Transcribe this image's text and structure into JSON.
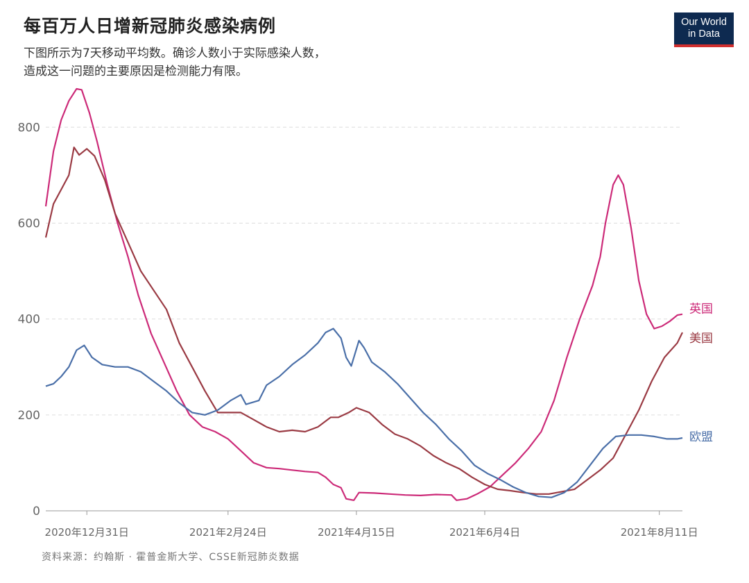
{
  "header": {
    "title": "每百万人日增新冠肺炎感染病例",
    "subtitle_line1": "下图所示为7天移动平均数。确诊人数小于实际感染人数，",
    "subtitle_line2": "造成这一问题的主要原因是检测能力有限。",
    "logo_line1": "Our World",
    "logo_line2": "in Data"
  },
  "footer": {
    "source": "资料来源：约翰斯 · 霍普金斯大学、CSSE新冠肺炎数据"
  },
  "chart_data": {
    "type": "line",
    "title": "每百万人日增新冠肺炎感染病例",
    "subtitle": "下图所示为7天移动平均数。确诊人数小于实际感染人数，造成这一问题的主要原因是检测能力有限。",
    "xlabel": "",
    "ylabel": "",
    "xlim": [
      "2020-12-15",
      "2021-08-20"
    ],
    "ylim": [
      0,
      880
    ],
    "yticks": [
      0,
      200,
      400,
      600,
      800
    ],
    "xticks": [
      {
        "date": "2020-12-31",
        "label": "2020年12月31日"
      },
      {
        "date": "2021-02-24",
        "label": "2021年2月24日"
      },
      {
        "date": "2021-04-15",
        "label": "2021年4月15日"
      },
      {
        "date": "2021-06-04",
        "label": "2021年6月4日"
      },
      {
        "date": "2021-08-11",
        "label": "2021年8月11日"
      }
    ],
    "grid": true,
    "legend": "inline-right",
    "series": [
      {
        "name": "英国",
        "color": "#cc2a78",
        "points": [
          [
            "2020-12-15",
            635
          ],
          [
            "2020-12-18",
            750
          ],
          [
            "2020-12-21",
            815
          ],
          [
            "2020-12-24",
            855
          ],
          [
            "2020-12-27",
            880
          ],
          [
            "2020-12-29",
            878
          ],
          [
            "2021-01-01",
            830
          ],
          [
            "2021-01-04",
            770
          ],
          [
            "2021-01-08",
            680
          ],
          [
            "2021-01-12",
            600
          ],
          [
            "2021-01-16",
            530
          ],
          [
            "2021-01-20",
            450
          ],
          [
            "2021-01-25",
            370
          ],
          [
            "2021-01-30",
            310
          ],
          [
            "2021-02-04",
            250
          ],
          [
            "2021-02-09",
            200
          ],
          [
            "2021-02-14",
            175
          ],
          [
            "2021-02-19",
            165
          ],
          [
            "2021-02-24",
            150
          ],
          [
            "2021-03-01",
            125
          ],
          [
            "2021-03-06",
            100
          ],
          [
            "2021-03-11",
            90
          ],
          [
            "2021-03-16",
            88
          ],
          [
            "2021-03-21",
            85
          ],
          [
            "2021-03-26",
            82
          ],
          [
            "2021-03-31",
            80
          ],
          [
            "2021-04-03",
            70
          ],
          [
            "2021-04-06",
            55
          ],
          [
            "2021-04-09",
            48
          ],
          [
            "2021-04-11",
            25
          ],
          [
            "2021-04-14",
            22
          ],
          [
            "2021-04-16",
            38
          ],
          [
            "2021-04-22",
            37
          ],
          [
            "2021-04-28",
            35
          ],
          [
            "2021-05-04",
            33
          ],
          [
            "2021-05-10",
            32
          ],
          [
            "2021-05-16",
            34
          ],
          [
            "2021-05-22",
            33
          ],
          [
            "2021-05-24",
            22
          ],
          [
            "2021-05-28",
            25
          ],
          [
            "2021-06-01",
            35
          ],
          [
            "2021-06-06",
            50
          ],
          [
            "2021-06-11",
            75
          ],
          [
            "2021-06-16",
            100
          ],
          [
            "2021-06-21",
            130
          ],
          [
            "2021-06-26",
            165
          ],
          [
            "2021-07-01",
            230
          ],
          [
            "2021-07-06",
            320
          ],
          [
            "2021-07-11",
            400
          ],
          [
            "2021-07-16",
            470
          ],
          [
            "2021-07-19",
            530
          ],
          [
            "2021-07-21",
            600
          ],
          [
            "2021-07-24",
            680
          ],
          [
            "2021-07-26",
            700
          ],
          [
            "2021-07-28",
            680
          ],
          [
            "2021-07-31",
            590
          ],
          [
            "2021-08-03",
            480
          ],
          [
            "2021-08-06",
            410
          ],
          [
            "2021-08-09",
            380
          ],
          [
            "2021-08-12",
            385
          ],
          [
            "2021-08-15",
            395
          ],
          [
            "2021-08-18",
            408
          ],
          [
            "2021-08-20",
            410
          ]
        ]
      },
      {
        "name": "美国",
        "color": "#9a3a43",
        "points": [
          [
            "2020-12-15",
            570
          ],
          [
            "2020-12-18",
            640
          ],
          [
            "2020-12-21",
            670
          ],
          [
            "2020-12-24",
            700
          ],
          [
            "2020-12-26",
            758
          ],
          [
            "2020-12-28",
            742
          ],
          [
            "2020-12-31",
            755
          ],
          [
            "2021-01-03",
            740
          ],
          [
            "2021-01-07",
            690
          ],
          [
            "2021-01-11",
            620
          ],
          [
            "2021-01-16",
            560
          ],
          [
            "2021-01-21",
            500
          ],
          [
            "2021-01-26",
            460
          ],
          [
            "2021-01-31",
            420
          ],
          [
            "2021-02-05",
            350
          ],
          [
            "2021-02-10",
            300
          ],
          [
            "2021-02-15",
            250
          ],
          [
            "2021-02-20",
            205
          ],
          [
            "2021-02-24",
            205
          ],
          [
            "2021-03-01",
            205
          ],
          [
            "2021-03-06",
            190
          ],
          [
            "2021-03-11",
            175
          ],
          [
            "2021-03-16",
            165
          ],
          [
            "2021-03-21",
            168
          ],
          [
            "2021-03-26",
            165
          ],
          [
            "2021-03-31",
            175
          ],
          [
            "2021-04-05",
            195
          ],
          [
            "2021-04-08",
            195
          ],
          [
            "2021-04-12",
            205
          ],
          [
            "2021-04-15",
            215
          ],
          [
            "2021-04-20",
            205
          ],
          [
            "2021-04-25",
            180
          ],
          [
            "2021-04-30",
            160
          ],
          [
            "2021-05-05",
            150
          ],
          [
            "2021-05-10",
            135
          ],
          [
            "2021-05-15",
            115
          ],
          [
            "2021-05-20",
            100
          ],
          [
            "2021-05-25",
            88
          ],
          [
            "2021-05-30",
            70
          ],
          [
            "2021-06-04",
            55
          ],
          [
            "2021-06-09",
            45
          ],
          [
            "2021-06-14",
            42
          ],
          [
            "2021-06-19",
            38
          ],
          [
            "2021-06-24",
            35
          ],
          [
            "2021-06-29",
            35
          ],
          [
            "2021-07-04",
            40
          ],
          [
            "2021-07-09",
            45
          ],
          [
            "2021-07-14",
            65
          ],
          [
            "2021-07-19",
            85
          ],
          [
            "2021-07-24",
            110
          ],
          [
            "2021-07-29",
            160
          ],
          [
            "2021-08-03",
            210
          ],
          [
            "2021-08-08",
            270
          ],
          [
            "2021-08-13",
            320
          ],
          [
            "2021-08-18",
            350
          ],
          [
            "2021-08-20",
            372
          ]
        ]
      },
      {
        "name": "欧盟",
        "color": "#4a6fa8",
        "points": [
          [
            "2020-12-15",
            260
          ],
          [
            "2020-12-18",
            265
          ],
          [
            "2020-12-21",
            280
          ],
          [
            "2020-12-24",
            300
          ],
          [
            "2020-12-27",
            335
          ],
          [
            "2020-12-30",
            345
          ],
          [
            "2021-01-02",
            320
          ],
          [
            "2021-01-06",
            305
          ],
          [
            "2021-01-11",
            300
          ],
          [
            "2021-01-16",
            300
          ],
          [
            "2021-01-21",
            290
          ],
          [
            "2021-01-26",
            270
          ],
          [
            "2021-01-31",
            250
          ],
          [
            "2021-02-05",
            225
          ],
          [
            "2021-02-10",
            205
          ],
          [
            "2021-02-15",
            200
          ],
          [
            "2021-02-20",
            210
          ],
          [
            "2021-02-25",
            230
          ],
          [
            "2021-03-01",
            242
          ],
          [
            "2021-03-03",
            222
          ],
          [
            "2021-03-08",
            230
          ],
          [
            "2021-03-11",
            262
          ],
          [
            "2021-03-16",
            280
          ],
          [
            "2021-03-21",
            305
          ],
          [
            "2021-03-26",
            325
          ],
          [
            "2021-03-31",
            350
          ],
          [
            "2021-04-03",
            372
          ],
          [
            "2021-04-06",
            380
          ],
          [
            "2021-04-09",
            360
          ],
          [
            "2021-04-11",
            320
          ],
          [
            "2021-04-13",
            302
          ],
          [
            "2021-04-16",
            355
          ],
          [
            "2021-04-18",
            340
          ],
          [
            "2021-04-21",
            310
          ],
          [
            "2021-04-26",
            290
          ],
          [
            "2021-05-01",
            265
          ],
          [
            "2021-05-06",
            235
          ],
          [
            "2021-05-11",
            205
          ],
          [
            "2021-05-16",
            180
          ],
          [
            "2021-05-21",
            150
          ],
          [
            "2021-05-26",
            125
          ],
          [
            "2021-05-31",
            95
          ],
          [
            "2021-06-05",
            78
          ],
          [
            "2021-06-10",
            65
          ],
          [
            "2021-06-15",
            50
          ],
          [
            "2021-06-20",
            38
          ],
          [
            "2021-06-25",
            30
          ],
          [
            "2021-06-30",
            28
          ],
          [
            "2021-07-05",
            38
          ],
          [
            "2021-07-10",
            60
          ],
          [
            "2021-07-15",
            95
          ],
          [
            "2021-07-20",
            130
          ],
          [
            "2021-07-25",
            155
          ],
          [
            "2021-07-30",
            158
          ],
          [
            "2021-08-04",
            158
          ],
          [
            "2021-08-09",
            155
          ],
          [
            "2021-08-14",
            150
          ],
          [
            "2021-08-18",
            150
          ],
          [
            "2021-08-20",
            152
          ]
        ]
      }
    ]
  }
}
